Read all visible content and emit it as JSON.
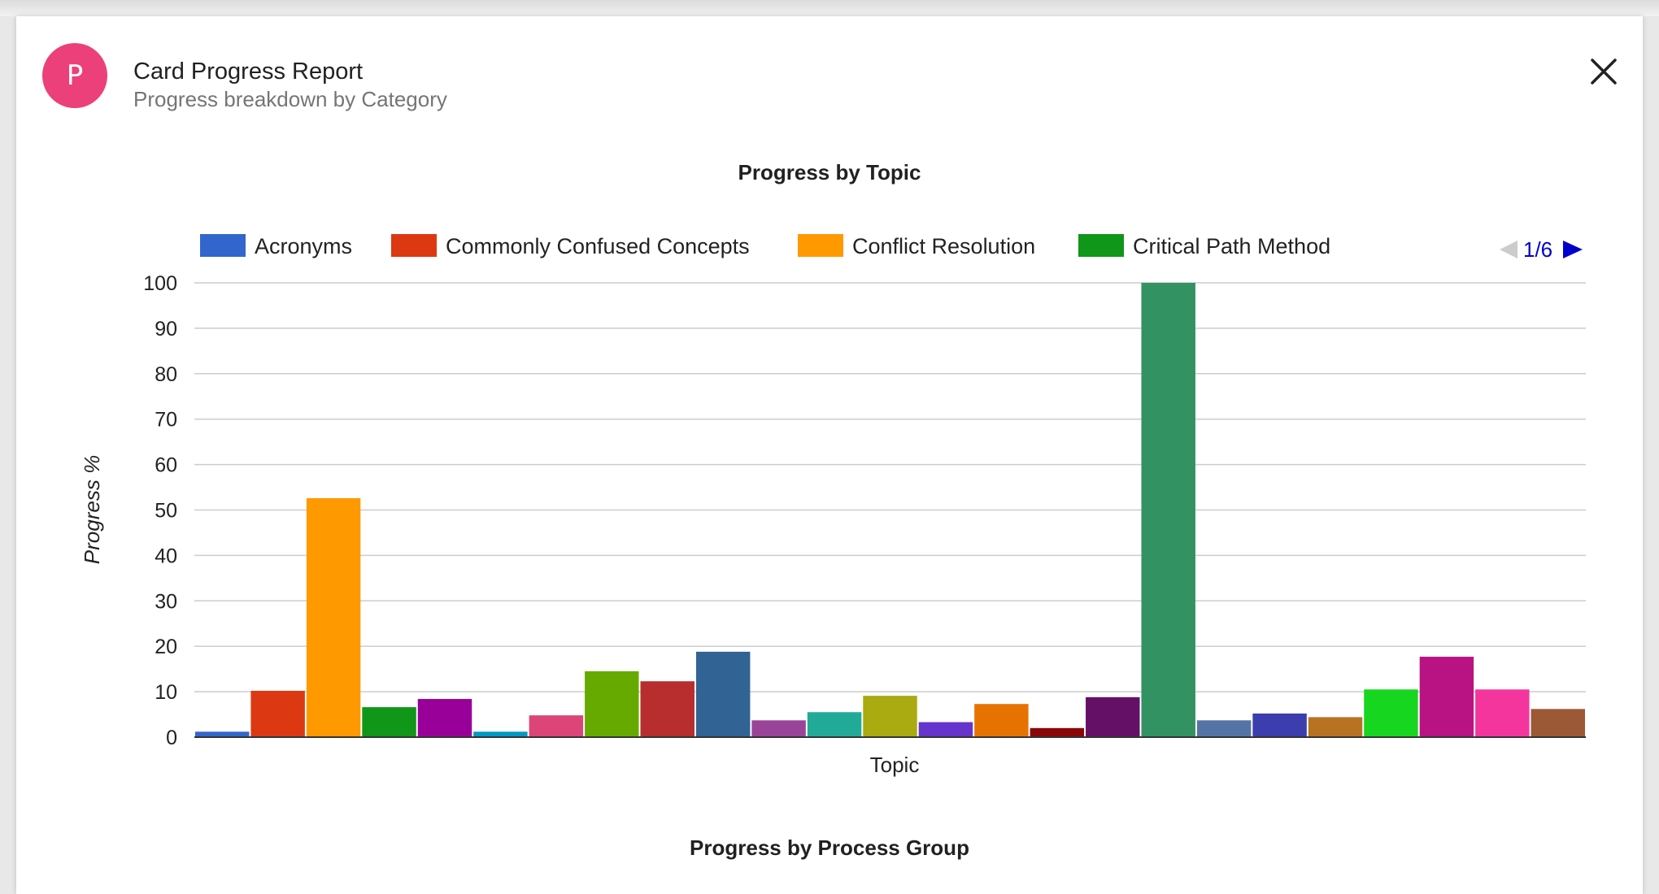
{
  "header": {
    "avatar_letter": "P",
    "title": "Card Progress Report",
    "subtitle": "Progress breakdown by Category"
  },
  "icons": {
    "close": "close-icon"
  },
  "colors": {
    "avatar": "#ec407a",
    "legend_nav_active": "#0000cc",
    "legend_nav_inactive": "#cccccc"
  },
  "chart_data": {
    "type": "bar",
    "title": "Progress by Topic",
    "xlabel": "Topic",
    "ylabel": "Progress %",
    "ylim": [
      0,
      100
    ],
    "yticks": [
      0,
      10,
      20,
      30,
      40,
      50,
      60,
      70,
      80,
      90,
      100
    ],
    "grid": true,
    "legend_position": "top",
    "legend_page": "1/6",
    "series": [
      {
        "name": "Acronyms",
        "value": 1.2,
        "color": "#3366cc"
      },
      {
        "name": "Commonly Confused Concepts",
        "value": 10.2,
        "color": "#dc3912"
      },
      {
        "name": "Conflict Resolution",
        "value": 52.6,
        "color": "#ff9900"
      },
      {
        "name": "Critical Path Method",
        "value": 6.6,
        "color": "#109618"
      },
      {
        "value": 8.4,
        "color": "#990099"
      },
      {
        "value": 1.2,
        "color": "#0099c6"
      },
      {
        "value": 4.8,
        "color": "#dd4477"
      },
      {
        "value": 14.5,
        "color": "#66aa00"
      },
      {
        "value": 12.3,
        "color": "#b82e2e"
      },
      {
        "value": 18.8,
        "color": "#316395"
      },
      {
        "value": 3.7,
        "color": "#994499"
      },
      {
        "value": 5.5,
        "color": "#22aa99"
      },
      {
        "value": 9.1,
        "color": "#aaaa11"
      },
      {
        "value": 3.3,
        "color": "#6633cc"
      },
      {
        "value": 7.3,
        "color": "#e67300"
      },
      {
        "value": 2.0,
        "color": "#8b0707"
      },
      {
        "value": 8.8,
        "color": "#651067"
      },
      {
        "value": 100,
        "color": "#329262"
      },
      {
        "value": 3.7,
        "color": "#5574a6"
      },
      {
        "value": 5.2,
        "color": "#3b3eac"
      },
      {
        "value": 4.4,
        "color": "#b77322"
      },
      {
        "value": 10.5,
        "color": "#16d620"
      },
      {
        "value": 17.7,
        "color": "#b91383"
      },
      {
        "value": 10.5,
        "color": "#f4359e"
      },
      {
        "value": 6.2,
        "color": "#9c5935"
      }
    ]
  },
  "next_section": {
    "title": "Progress by Process Group"
  }
}
